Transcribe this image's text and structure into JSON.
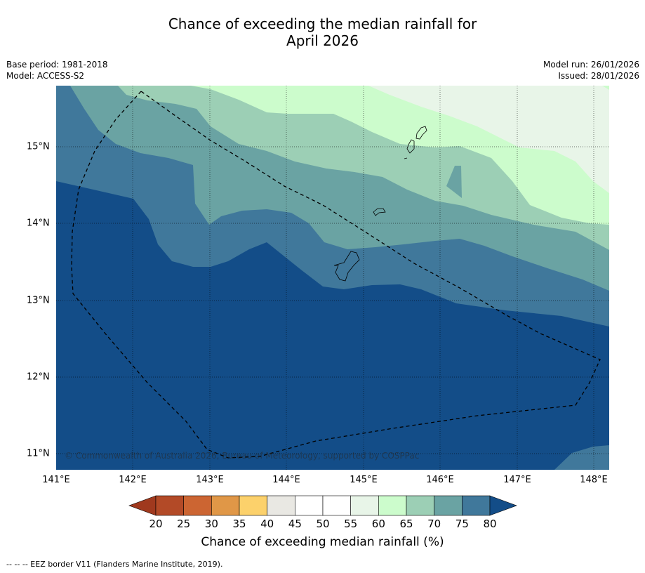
{
  "title_line1": "Chance of exceeding the median rainfall for",
  "title_line2": "April 2026",
  "base_period": "Base period: 1981-2018",
  "model": "Model: ACCESS-S2",
  "model_run": "Model run: 26/01/2026",
  "issued": "Issued: 28/01/2026",
  "copyright": "© Commonwealth of Australia 2026, Bureau of Meteorology, supported by COSPPac",
  "lon_labels": [
    "141°E",
    "142°E",
    "143°E",
    "144°E",
    "145°E",
    "146°E",
    "147°E",
    "148°E"
  ],
  "lat_labels": [
    "15°N",
    "14°N",
    "13°N",
    "12°N",
    "11°N"
  ],
  "colorbar": {
    "ticks": [
      "20",
      "25",
      "30",
      "35",
      "40",
      "45",
      "50",
      "55",
      "60",
      "65",
      "70",
      "75",
      "80"
    ],
    "colors": [
      "#b34a27",
      "#cc6532",
      "#e09747",
      "#fcd16b",
      "#e9e8e3",
      "#ffffff",
      "#ffffff",
      "#e8f5e8",
      "#ccfccc",
      "#9ccfb5",
      "#6aa3a3",
      "#40789b"
    ],
    "under_color": "#a0391e",
    "over_color": "#134d88",
    "label": "Chance of exceeding median rainfall (%)"
  },
  "footnote": "--  --  -- EEZ border V11 (Flanders Marine Institute, 2019)."
}
